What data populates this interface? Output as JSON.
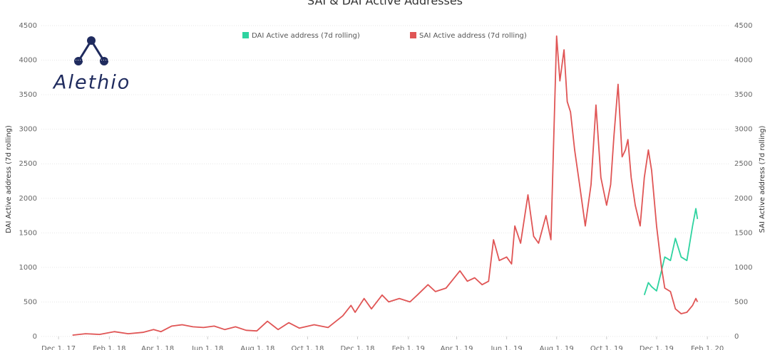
{
  "chart_data": {
    "type": "line",
    "title": "SAI & DAI Active Addresses",
    "logo": "Alethio",
    "y_label": "DAI Active address (7d rolling)",
    "y2_label": "SAI Active address (7d rolling)",
    "x": [
      "2017-12-18",
      "2018-01-03",
      "2018-01-20",
      "2018-02-07",
      "2018-02-24",
      "2018-03-14",
      "2018-03-27",
      "2018-04-05",
      "2018-04-18",
      "2018-05-01",
      "2018-05-14",
      "2018-05-27",
      "2018-06-09",
      "2018-06-22",
      "2018-07-05",
      "2018-07-18",
      "2018-07-31",
      "2018-08-13",
      "2018-08-26",
      "2018-09-08",
      "2018-09-21",
      "2018-10-09",
      "2018-10-26",
      "2018-11-13",
      "2018-11-23",
      "2018-11-28",
      "2018-12-09",
      "2018-12-18",
      "2018-12-31",
      "2019-01-08",
      "2019-01-21",
      "2019-02-03",
      "2019-02-12",
      "2019-02-25",
      "2019-03-06",
      "2019-03-19",
      "2019-04-05",
      "2019-04-14",
      "2019-04-23",
      "2019-05-02",
      "2019-05-10",
      "2019-05-16",
      "2019-05-23",
      "2019-06-01",
      "2019-06-07",
      "2019-06-11",
      "2019-06-18",
      "2019-06-27",
      "2019-07-04",
      "2019-07-10",
      "2019-07-19",
      "2019-07-25",
      "2019-08-01",
      "2019-08-05",
      "2019-08-10",
      "2019-08-14",
      "2019-08-18",
      "2019-08-23",
      "2019-08-29",
      "2019-09-05",
      "2019-09-12",
      "2019-09-18",
      "2019-09-24",
      "2019-10-01",
      "2019-10-06",
      "2019-10-10",
      "2019-10-15",
      "2019-10-20",
      "2019-10-24",
      "2019-10-27",
      "2019-10-31",
      "2019-11-05",
      "2019-11-11",
      "2019-11-16",
      "2019-11-21",
      "2019-11-25",
      "2019-12-01",
      "2019-12-07",
      "2019-12-11",
      "2019-12-18",
      "2019-12-24",
      "2019-12-31",
      "2020-01-07",
      "2020-01-14",
      "2020-01-18",
      "2020-01-20"
    ],
    "series": [
      {
        "name": "DAI Active address (7d rolling)",
        "color": "#2ed3a0",
        "axis": "y",
        "values": [
          null,
          null,
          null,
          null,
          null,
          null,
          null,
          null,
          null,
          null,
          null,
          null,
          null,
          null,
          null,
          null,
          null,
          null,
          null,
          null,
          null,
          null,
          null,
          null,
          null,
          null,
          null,
          null,
          null,
          null,
          null,
          null,
          null,
          null,
          null,
          null,
          null,
          null,
          null,
          null,
          null,
          null,
          null,
          null,
          null,
          null,
          null,
          null,
          null,
          null,
          null,
          null,
          null,
          null,
          null,
          null,
          null,
          null,
          null,
          null,
          null,
          null,
          null,
          null,
          null,
          null,
          null,
          null,
          null,
          null,
          null,
          null,
          null,
          600,
          780,
          720,
          660,
          950,
          1150,
          1100,
          1420,
          1150,
          1100,
          1600,
          1850,
          1700
        ]
      },
      {
        "name": "SAI Active address (7d rolling)",
        "color": "#e05555",
        "axis": "y2",
        "values": [
          20,
          40,
          30,
          70,
          40,
          60,
          100,
          70,
          150,
          170,
          140,
          130,
          150,
          100,
          140,
          90,
          80,
          220,
          100,
          200,
          120,
          170,
          130,
          300,
          450,
          350,
          550,
          400,
          600,
          500,
          550,
          500,
          600,
          750,
          650,
          700,
          950,
          800,
          850,
          750,
          800,
          1400,
          1100,
          1150,
          1050,
          1600,
          1350,
          2050,
          1450,
          1350,
          1750,
          1400,
          4350,
          3700,
          4150,
          3400,
          3250,
          2700,
          2200,
          1600,
          2200,
          3350,
          2300,
          1900,
          2200,
          2900,
          3650,
          2600,
          2700,
          2850,
          2300,
          1900,
          1600,
          2300,
          2700,
          2400,
          1600,
          1000,
          700,
          650,
          400,
          330,
          350,
          450,
          550,
          500
        ]
      }
    ],
    "xlim": [
      "2017-11-10",
      "2020-02-27"
    ],
    "xticks": [
      {
        "value": "2017-12-01",
        "label": "Dec 1, 17"
      },
      {
        "value": "2018-02-01",
        "label": "Feb 1, 18"
      },
      {
        "value": "2018-04-01",
        "label": "Apr 1, 18"
      },
      {
        "value": "2018-06-01",
        "label": "Jun 1, 18"
      },
      {
        "value": "2018-08-01",
        "label": "Aug 1, 18"
      },
      {
        "value": "2018-10-01",
        "label": "Oct 1, 18"
      },
      {
        "value": "2018-12-01",
        "label": "Dec 1, 18"
      },
      {
        "value": "2019-02-01",
        "label": "Feb 1, 19"
      },
      {
        "value": "2019-04-01",
        "label": "Apr 1, 19"
      },
      {
        "value": "2019-06-01",
        "label": "Jun 1, 19"
      },
      {
        "value": "2019-08-01",
        "label": "Aug 1, 19"
      },
      {
        "value": "2019-10-01",
        "label": "Oct 1, 19"
      },
      {
        "value": "2019-12-01",
        "label": "Dec 1, 19"
      },
      {
        "value": "2020-02-01",
        "label": "Feb 1, 20"
      }
    ],
    "ylim": [
      0,
      4500
    ],
    "yticks": [
      0,
      500,
      1000,
      1500,
      2000,
      2500,
      3000,
      3500,
      4000,
      4500
    ],
    "y2lim": [
      0,
      4500
    ],
    "y2ticks": [
      0,
      500,
      1000,
      1500,
      2000,
      2500,
      3000,
      3500,
      4000,
      4500
    ],
    "grid": true
  }
}
